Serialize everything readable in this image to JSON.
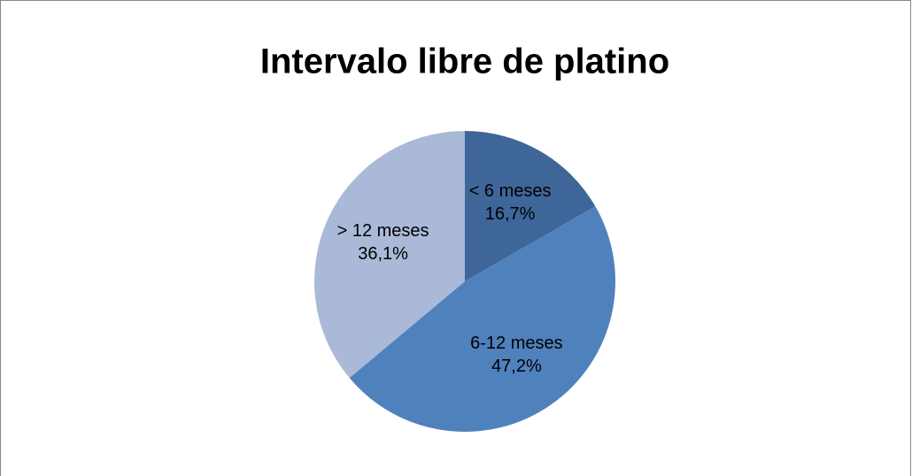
{
  "chart_data": {
    "type": "pie",
    "title": "Intervalo libre de platino",
    "categories": [
      "< 6 meses",
      "6-12 meses",
      "> 12 meses"
    ],
    "values": [
      16.7,
      47.2,
      36.1
    ],
    "value_labels": [
      "16,7%",
      "47,2%",
      "36,1%"
    ],
    "colors": [
      "#3f6699",
      "#4f81bd",
      "#aab9d8"
    ]
  }
}
